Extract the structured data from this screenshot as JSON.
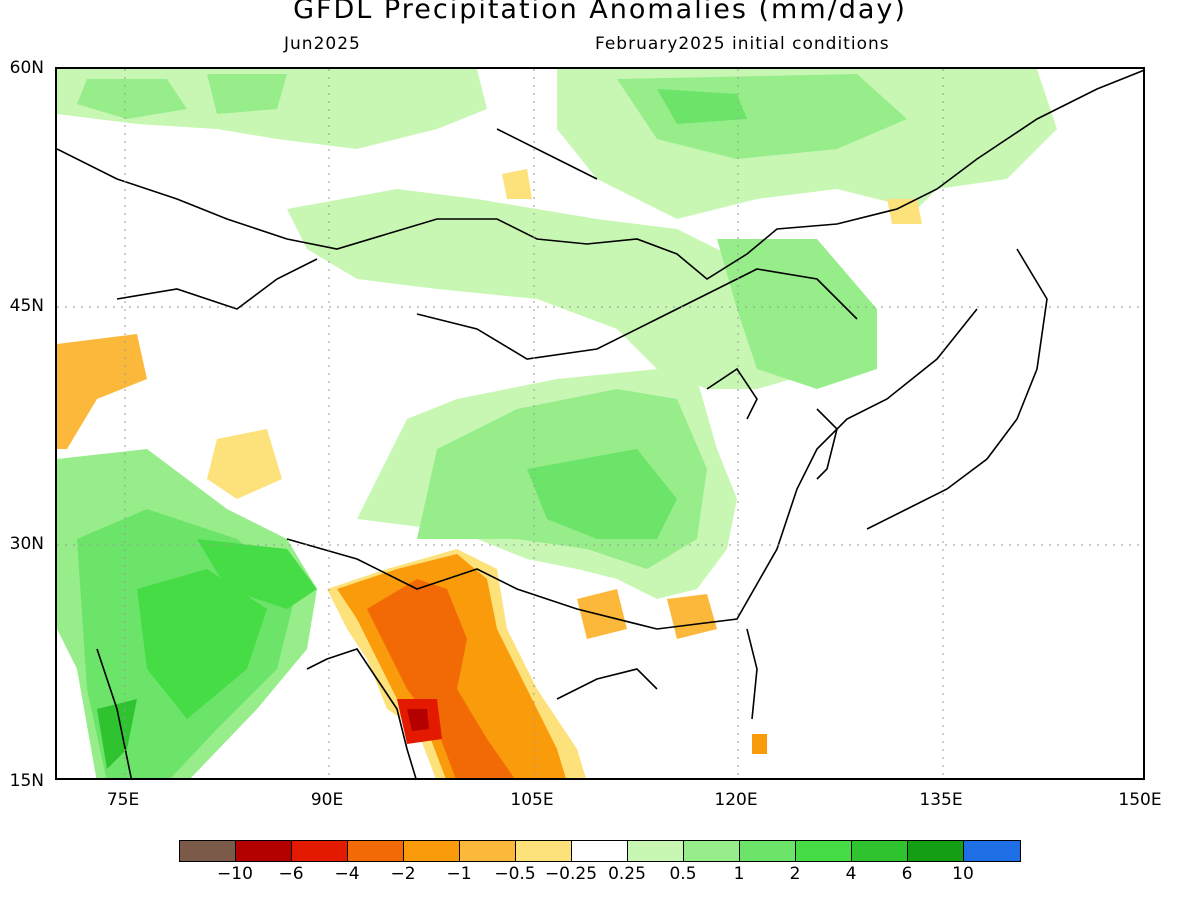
{
  "header": {
    "title": "GFDL Precipitation Anomalies (mm/day)",
    "month": "Jun2025",
    "initial_conditions": "February2025 initial conditions"
  },
  "map": {
    "lat_labels": [
      "60N",
      "45N",
      "30N",
      "15N"
    ],
    "lon_labels": [
      "75E",
      "90E",
      "105E",
      "120E",
      "135E",
      "150E"
    ],
    "extent": {
      "lon": [
        70,
        150
      ],
      "lat": [
        15,
        60
      ]
    }
  },
  "colorbar": {
    "colors": [
      "#7b5a4a",
      "#b50000",
      "#e41a00",
      "#f26a05",
      "#f99b0b",
      "#fcb83a",
      "#fde17b",
      "#ffffff",
      "#c8f7b4",
      "#96ed8a",
      "#6ce46a",
      "#46dc46",
      "#2fc42f",
      "#139e13",
      "#1e6ee6"
    ],
    "labels": [
      "−10",
      "−6",
      "−4",
      "−2",
      "−1",
      "−0.5",
      "−0.25",
      "0.25",
      "0.5",
      "1",
      "2",
      "4",
      "6",
      "10"
    ]
  }
}
